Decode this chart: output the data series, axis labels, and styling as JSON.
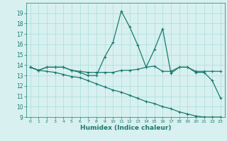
{
  "xlabel": "Humidex (Indice chaleur)",
  "x_values": [
    0,
    1,
    2,
    3,
    4,
    5,
    6,
    7,
    8,
    9,
    10,
    11,
    12,
    13,
    14,
    15,
    16,
    17,
    18,
    19,
    20,
    21,
    22,
    23
  ],
  "line1": [
    13.8,
    13.5,
    13.8,
    13.8,
    13.8,
    13.5,
    13.3,
    13.0,
    13.0,
    14.8,
    16.2,
    19.2,
    17.7,
    15.9,
    13.8,
    15.5,
    17.5,
    13.2,
    13.8,
    13.8,
    13.3,
    13.3,
    12.5,
    10.8
  ],
  "line2": [
    13.8,
    13.5,
    13.8,
    13.8,
    13.8,
    13.5,
    13.4,
    13.3,
    13.3,
    13.3,
    13.3,
    13.5,
    13.5,
    13.6,
    13.8,
    13.9,
    13.4,
    13.4,
    13.8,
    13.8,
    13.4,
    13.4,
    13.4,
    13.4
  ],
  "line3": [
    13.8,
    13.5,
    13.4,
    13.3,
    13.1,
    12.9,
    12.8,
    12.5,
    12.2,
    11.9,
    11.6,
    11.4,
    11.1,
    10.8,
    10.5,
    10.3,
    10.0,
    9.8,
    9.5,
    9.3,
    9.1,
    9.0,
    9.0,
    9.0
  ],
  "line_color": "#1a7a6e",
  "bg_color": "#d8f0f0",
  "grid_color": "#aadddd",
  "ylim": [
    9,
    20
  ],
  "xlim_min": -0.5,
  "xlim_max": 23.5,
  "yticks": [
    9,
    10,
    11,
    12,
    13,
    14,
    15,
    16,
    17,
    18,
    19
  ],
  "xticks": [
    0,
    1,
    2,
    3,
    4,
    5,
    6,
    7,
    8,
    9,
    10,
    11,
    12,
    13,
    14,
    15,
    16,
    17,
    18,
    19,
    20,
    21,
    22,
    23
  ],
  "marker": "+",
  "markersize": 3,
  "linewidth": 0.9
}
